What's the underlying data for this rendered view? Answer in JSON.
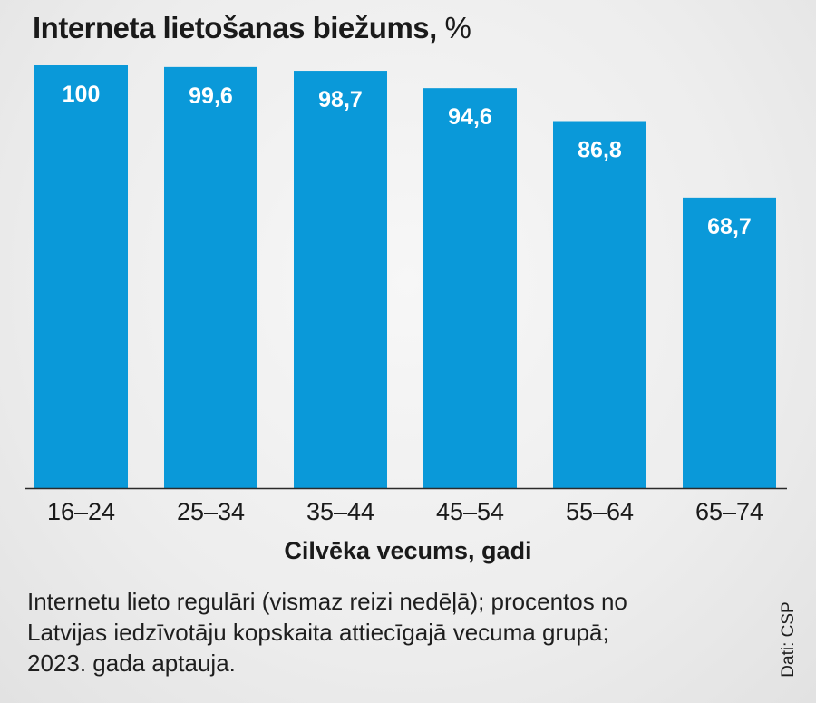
{
  "chart_data": {
    "type": "bar",
    "title": "Interneta lietošanas biežums,",
    "unit": "%",
    "categories": [
      "16–24",
      "25–34",
      "35–44",
      "45–54",
      "55–64",
      "65–74"
    ],
    "values": [
      100,
      99.6,
      98.7,
      94.6,
      86.8,
      68.7
    ],
    "value_labels": [
      "100",
      "99,6",
      "98,7",
      "94,6",
      "86,8",
      "68,7"
    ],
    "xlabel": "Cilvēka vecums, gadi",
    "ylabel": "",
    "ylim": [
      0,
      100
    ],
    "grid": false,
    "bar_color": "#0a99d9"
  },
  "note_lines": [
    "Internetu lieto regulāri (vismaz reizi nedēļā); procentos no",
    "Latvijas iedzīvotāju kopskaita attiecīgajā vecuma grupā;",
    "2023. gada aptauja."
  ],
  "source": "Dati: CSP"
}
